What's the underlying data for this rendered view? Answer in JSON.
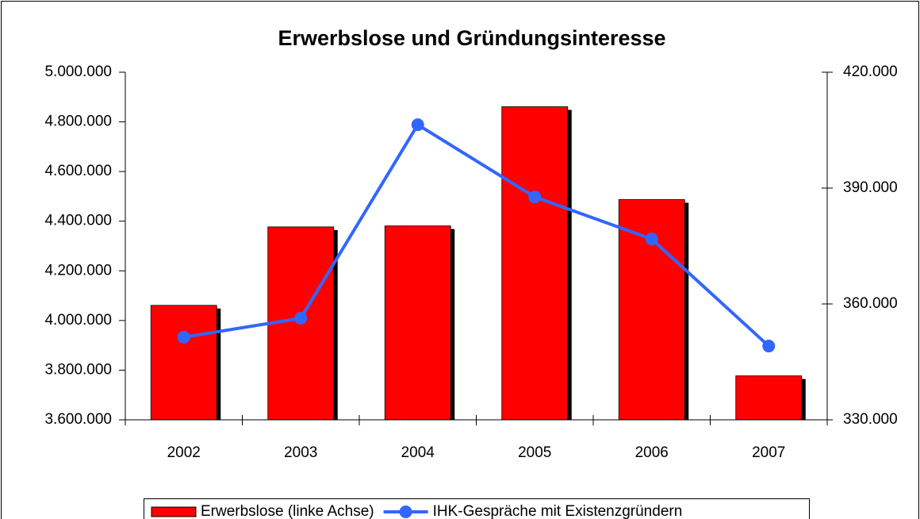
{
  "chart_data": {
    "type": "bar",
    "title": "Erwerbslose und Gründungsinteresse",
    "categories": [
      "2002",
      "2003",
      "2004",
      "2005",
      "2006",
      "2007"
    ],
    "series": [
      {
        "name": "Erwerbslose (linke Achse)",
        "type": "bar",
        "color": "#ff0000",
        "values": [
          4061000,
          4377000,
          4381000,
          4861000,
          4487000,
          3777000
        ]
      },
      {
        "name": "IHK-Gespräche mit Existenzgründern",
        "type": "line",
        "axis": "y2",
        "color": "#3366ff",
        "values": [
          351400,
          356300,
          406400,
          387700,
          376800,
          349100
        ]
      }
    ],
    "ylim": [
      3600000,
      5000000
    ],
    "yticks": [
      {
        "value": 3600000,
        "label": "3.600.000"
      },
      {
        "value": 3800000,
        "label": "3.800.000"
      },
      {
        "value": 4000000,
        "label": "4.000.000"
      },
      {
        "value": 4200000,
        "label": "4.200.000"
      },
      {
        "value": 4400000,
        "label": "4.400.000"
      },
      {
        "value": 4600000,
        "label": "4.600.000"
      },
      {
        "value": 4800000,
        "label": "4.800.000"
      },
      {
        "value": 5000000,
        "label": "5.000.000"
      }
    ],
    "y2lim": [
      330000,
      420000
    ],
    "y2ticks": [
      {
        "value": 330000,
        "label": "330.000"
      },
      {
        "value": 360000,
        "label": "360.000"
      },
      {
        "value": 390000,
        "label": "390.000"
      },
      {
        "value": 420000,
        "label": "420.000"
      }
    ],
    "legend": "bottom"
  }
}
